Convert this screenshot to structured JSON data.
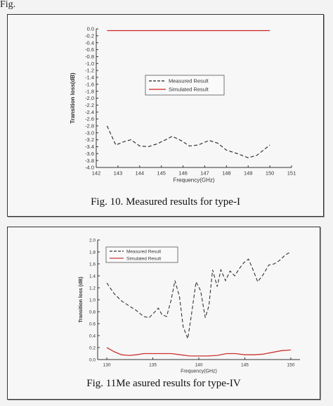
{
  "page": {
    "top_fragment": "Fig."
  },
  "figures": [
    {
      "caption": "Fig. 10.    Measured results for type-I"
    },
    {
      "caption": "Fig.  11Me asured results for type-IV"
    }
  ],
  "chart_data": [
    {
      "type": "line",
      "title": "",
      "xlabel": "Frequency(GHz)",
      "ylabel": "Transition loss(dB)",
      "xlim": [
        142,
        151
      ],
      "ylim": [
        -4.0,
        0.0
      ],
      "x_ticks": [
        142,
        143,
        144,
        145,
        146,
        147,
        148,
        149,
        150,
        151
      ],
      "x_tick_labels": [
        "142",
        "143",
        "144",
        "145",
        "146",
        "147",
        "148",
        "149",
        "150",
        "151"
      ],
      "y_ticks": [
        0.0,
        -0.2,
        -0.4,
        -0.6,
        -0.8,
        -1.0,
        -1.2,
        -1.4,
        -1.6,
        -1.8,
        -2.0,
        -2.2,
        -2.4,
        -2.6,
        -2.8,
        -3.0,
        -3.2,
        -3.4,
        -3.6,
        -3.8,
        -4.0
      ],
      "y_tick_labels": [
        "0.0",
        "-0.2",
        "-0.4",
        "-0.6",
        "-0.8",
        "-1.0",
        "-1.2",
        "-1.4",
        "-1.6",
        "-1.8",
        "-2.0",
        "-2.2",
        "-2.4",
        "-2.6",
        "-2.8",
        "-3.0",
        "-3.2",
        "-3.4",
        "-3.6",
        "-3.8",
        "-4.0"
      ],
      "grid": false,
      "legend_position": "center",
      "series": [
        {
          "name": "Measured Result",
          "color": "#222222",
          "dash": "dashed",
          "x": [
            142.5,
            142.9,
            143.3,
            143.6,
            144.0,
            144.4,
            144.8,
            145.2,
            145.5,
            145.9,
            146.3,
            146.7,
            147.2,
            147.6,
            148.0,
            148.5,
            149.0,
            149.4,
            150.0
          ],
          "y": [
            -2.8,
            -3.35,
            -3.25,
            -3.2,
            -3.38,
            -3.4,
            -3.32,
            -3.2,
            -3.1,
            -3.22,
            -3.38,
            -3.35,
            -3.22,
            -3.3,
            -3.5,
            -3.6,
            -3.72,
            -3.65,
            -3.35
          ]
        },
        {
          "name": "Simulated Result",
          "color": "#cc2222",
          "dash": "solid",
          "x": [
            142.5,
            150.0
          ],
          "y": [
            -0.05,
            -0.05
          ]
        }
      ]
    },
    {
      "type": "line",
      "title": "",
      "xlabel": "Frequency(GHz)",
      "ylabel": "Transition loss (dB)",
      "xlim": [
        129,
        151
      ],
      "ylim": [
        0.0,
        2.0
      ],
      "x_ticks": [
        130,
        135,
        140,
        145,
        150
      ],
      "x_tick_labels": [
        "130",
        "135",
        "140",
        "145",
        "150"
      ],
      "y_ticks": [
        0.0,
        0.2,
        0.4,
        0.6,
        0.8,
        1.0,
        1.2,
        1.4,
        1.6,
        1.8,
        2.0
      ],
      "y_tick_labels": [
        "0.0",
        "0.2",
        "0.4",
        "0.6",
        "0.8",
        "1.0",
        "1.2",
        "1.4",
        "1.6",
        "1.8",
        "2.0"
      ],
      "grid": false,
      "legend_position": "top-left",
      "series": [
        {
          "name": "Measured Result",
          "color": "#333333",
          "dash": "dashed",
          "x": [
            130,
            130.8,
            131.6,
            132.4,
            133.2,
            134.0,
            134.6,
            135.1,
            135.6,
            136.0,
            136.5,
            137.0,
            137.4,
            137.9,
            138.3,
            138.8,
            139.2,
            139.7,
            140.2,
            140.7,
            141.1,
            141.5,
            142.0,
            142.4,
            142.9,
            143.4,
            143.9,
            144.4,
            144.9,
            145.4,
            145.9,
            146.4,
            147.0,
            147.6,
            148.2,
            148.8,
            149.4,
            150.0
          ],
          "y": [
            1.28,
            1.1,
            0.98,
            0.9,
            0.82,
            0.72,
            0.7,
            0.78,
            0.86,
            0.75,
            0.72,
            1.0,
            1.32,
            1.05,
            0.55,
            0.35,
            0.75,
            1.3,
            1.15,
            0.7,
            0.9,
            1.5,
            1.22,
            1.5,
            1.32,
            1.48,
            1.4,
            1.52,
            1.62,
            1.68,
            1.5,
            1.3,
            1.42,
            1.58,
            1.6,
            1.66,
            1.75,
            1.8
          ]
        },
        {
          "name": "Simulated Result",
          "color": "#cc3333",
          "dash": "solid",
          "x": [
            130,
            130.8,
            131.6,
            132.4,
            133.2,
            134.0,
            135.0,
            136.0,
            137.0,
            138.0,
            139.0,
            140.0,
            141.0,
            142.0,
            143.0,
            144.0,
            145.0,
            146.0,
            147.0,
            148.0,
            149.0,
            150.0
          ],
          "y": [
            0.2,
            0.13,
            0.08,
            0.07,
            0.08,
            0.1,
            0.1,
            0.1,
            0.1,
            0.08,
            0.06,
            0.06,
            0.06,
            0.07,
            0.1,
            0.1,
            0.08,
            0.08,
            0.09,
            0.12,
            0.15,
            0.16
          ]
        }
      ]
    }
  ]
}
